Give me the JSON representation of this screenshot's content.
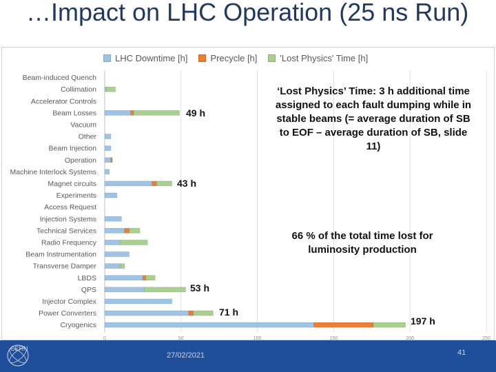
{
  "slide": {
    "title": "…Impact on LHC Operation (25 ns Run)",
    "date": "27/02/2021",
    "page_number": "41",
    "logo_text": "CERN"
  },
  "annotations": {
    "beam_losses": "49 h",
    "magnet_circuits": "43 h",
    "qps": "53 h",
    "power_converters": "71 h",
    "cryogenics": "197 h",
    "lost_physics_note": "‘Lost Physics’ Time: 3 h additional time assigned to each fault dumping while in stable beams (= average duration of SB to EOF – average duration of SB, slide 11)",
    "percent_note": "66 % of the total time lost for luminosity production"
  },
  "colors": {
    "downtime": "#9dc3e6",
    "precycle": "#ed7d31",
    "lost_physics": "#a9d18e",
    "footer": "#1f4e9b"
  },
  "chart_data": {
    "type": "bar",
    "orientation": "horizontal",
    "stacked": true,
    "title": "",
    "xlabel": "",
    "ylabel": "",
    "xlim": [
      0,
      250
    ],
    "xticks": [
      0,
      50,
      100,
      150,
      200,
      250
    ],
    "grid": true,
    "legend_position": "top",
    "categories": [
      "Beam-induced Quench",
      "Collimation",
      "Accelerator Controls",
      "Beam Losses",
      "Vacuum",
      "Other",
      "Beam Injection",
      "Operation",
      "Machine Interlock Systems",
      "Magnet circuits",
      "Experiments",
      "Access Request",
      "Injection Systems",
      "Technical Services",
      "Radio Frequency",
      "Beam Instrumentation",
      "Transverse Damper",
      "LBDS",
      "QPS",
      "Injector Complex",
      "Power Converters",
      "Cryogenics"
    ],
    "series": [
      {
        "name": "LHC Downtime [h]",
        "values": [
          0,
          1,
          0,
          17,
          0,
          4,
          4,
          4,
          3,
          31,
          8,
          0,
          11,
          13,
          10,
          16,
          10,
          25,
          26,
          44,
          55,
          137
        ]
      },
      {
        "name": "Precycle [h]",
        "values": [
          0,
          0,
          0,
          2,
          0,
          0,
          0,
          1,
          0,
          3,
          0,
          0,
          0,
          3,
          0,
          0,
          0,
          2,
          0,
          0,
          3,
          39
        ]
      },
      {
        "name": "'Lost Physics' Time [h]",
        "values": [
          0,
          6,
          0,
          30,
          0,
          0,
          0,
          0,
          0,
          10,
          0,
          0,
          0,
          7,
          18,
          0,
          3,
          6,
          27,
          0,
          13,
          21
        ]
      }
    ]
  }
}
